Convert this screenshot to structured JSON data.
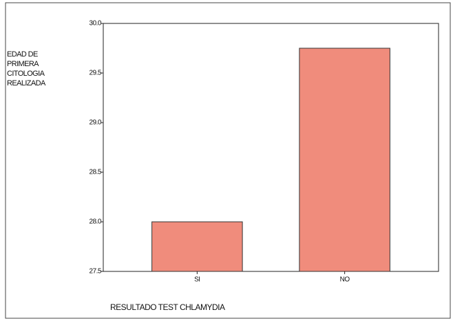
{
  "chart_data": {
    "type": "bar",
    "y_label": "EDAD DE PRIMERA CITOLOGIA REALIZADA",
    "x_label": "RESULTADO TEST CHLAMYDIA",
    "categories": [
      "SI",
      "NO"
    ],
    "values": [
      28.0,
      29.75
    ],
    "color": "#f08c7c",
    "ylim": [
      27.5,
      30.0
    ],
    "yticks": [
      27.5,
      {
        "value": 28,
        "label": "28.0"
      },
      28.5,
      {
        "value": 29,
        "label": "29.0"
      },
      29.5,
      {
        "value": 30,
        "label": "30.0"
      }
    ],
    "grid": false
  }
}
